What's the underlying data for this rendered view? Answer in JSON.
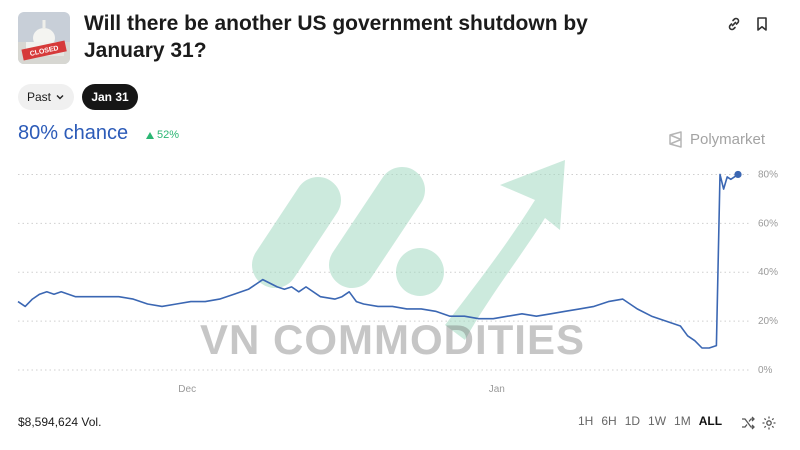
{
  "market": {
    "title": "Will there be another US government shutdown by January 31?",
    "thumbnail_badge": "CLOSED"
  },
  "filters": {
    "past_label": "Past",
    "date_label": "Jan 31"
  },
  "odds": {
    "chance_label": "80% chance",
    "delta_label": "52%"
  },
  "brand": {
    "name": "Polymarket"
  },
  "watermark": {
    "text": "VN COMMODITIES"
  },
  "footer": {
    "volume_label": "$8,594,624 Vol.",
    "ranges": [
      "1H",
      "6H",
      "1D",
      "1W",
      "1M",
      "ALL"
    ],
    "active_range": "ALL"
  },
  "colors": {
    "accent": "#2c5bb8",
    "positive": "#2bb673",
    "line": "#3b67b3"
  },
  "chart_data": {
    "type": "line",
    "title": "",
    "xlabel": "",
    "ylabel": "",
    "ylim": [
      0,
      90
    ],
    "y_ticks": [
      0,
      20,
      40,
      60,
      80
    ],
    "y_tick_labels": [
      "0%",
      "20%",
      "40%",
      "60%",
      "80%"
    ],
    "x_range": [
      0,
      1
    ],
    "x_ticks": [
      {
        "label": "Dec",
        "x": 0.235
      },
      {
        "label": "Jan",
        "x": 0.665
      }
    ],
    "grid": true,
    "series": [
      {
        "x": [
          0,
          0.01,
          0.02,
          0.03,
          0.04,
          0.05,
          0.06,
          0.07,
          0.08,
          0.1,
          0.12,
          0.14,
          0.16,
          0.18,
          0.2,
          0.22,
          0.24,
          0.26,
          0.28,
          0.3,
          0.32,
          0.34,
          0.36,
          0.37,
          0.38,
          0.39,
          0.4,
          0.42,
          0.44,
          0.45,
          0.46,
          0.47,
          0.48,
          0.5,
          0.52,
          0.54,
          0.56,
          0.58,
          0.6,
          0.62,
          0.64,
          0.66,
          0.68,
          0.7,
          0.72,
          0.74,
          0.76,
          0.78,
          0.8,
          0.82,
          0.84,
          0.85,
          0.86,
          0.88,
          0.9,
          0.92,
          0.93,
          0.94,
          0.95,
          0.96,
          0.97,
          0.975,
          0.98,
          0.985,
          0.99,
          0.995,
          1.0
        ],
        "y": [
          28,
          26,
          29,
          31,
          32,
          31,
          32,
          31,
          30,
          30,
          30,
          30,
          29,
          27,
          26,
          27,
          28,
          28,
          29,
          31,
          33,
          37,
          34,
          33,
          34,
          32,
          34,
          30,
          29,
          30,
          32,
          28,
          27,
          26,
          26,
          25,
          25,
          24,
          22,
          22,
          21,
          21,
          22,
          23,
          22,
          23,
          24,
          25,
          26,
          28,
          29,
          27,
          25,
          22,
          20,
          18,
          14,
          12,
          9,
          9,
          10,
          80,
          74,
          79,
          78,
          79,
          80
        ]
      }
    ],
    "current_point": {
      "x": 1.0,
      "y": 80
    }
  }
}
